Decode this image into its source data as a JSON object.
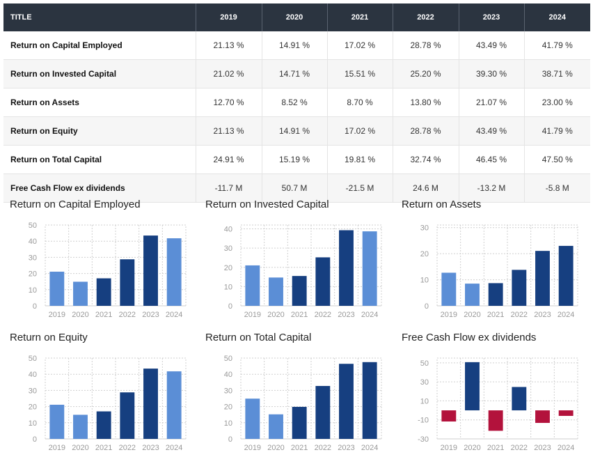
{
  "table": {
    "header": [
      "TITLE",
      "2019",
      "2020",
      "2021",
      "2022",
      "2023",
      "2024"
    ],
    "rows": [
      {
        "label": "Return on Capital Employed",
        "values": [
          "21.13 %",
          "14.91 %",
          "17.02 %",
          "28.78 %",
          "43.49 %",
          "41.79 %"
        ]
      },
      {
        "label": "Return on Invested Capital",
        "values": [
          "21.02 %",
          "14.71 %",
          "15.51 %",
          "25.20 %",
          "39.30 %",
          "38.71 %"
        ]
      },
      {
        "label": "Return on Assets",
        "values": [
          "12.70 %",
          "8.52 %",
          "8.70 %",
          "13.80 %",
          "21.07 %",
          "23.00 %"
        ]
      },
      {
        "label": "Return on Equity",
        "values": [
          "21.13 %",
          "14.91 %",
          "17.02 %",
          "28.78 %",
          "43.49 %",
          "41.79 %"
        ]
      },
      {
        "label": "Return on Total Capital",
        "values": [
          "24.91 %",
          "15.19 %",
          "19.81 %",
          "32.74 %",
          "46.45 %",
          "47.50 %"
        ]
      },
      {
        "label": "Free Cash Flow ex dividends",
        "values": [
          "-11.7 M",
          "50.7 M",
          "-21.5 M",
          "24.6 M",
          "-13.2 M",
          "-5.8 M"
        ]
      }
    ]
  },
  "colors": {
    "bar_light": "#5b8ed6",
    "bar_dark": "#163f80",
    "bar_negative": "#b3123c",
    "grid": "#cfcfcf",
    "tick": "#999999"
  },
  "chart_data": [
    {
      "type": "bar",
      "title": "Return on Capital Employed",
      "categories": [
        "2019",
        "2020",
        "2021",
        "2022",
        "2023",
        "2024"
      ],
      "values": [
        21.13,
        14.91,
        17.02,
        28.78,
        43.49,
        41.79
      ],
      "bar_colors": [
        "light",
        "light",
        "dark",
        "dark",
        "dark",
        "light"
      ],
      "yticks": [
        0,
        10,
        20,
        30,
        40,
        50
      ],
      "ylim": [
        0,
        50
      ],
      "grid": true
    },
    {
      "type": "bar",
      "title": "Return on Invested Capital",
      "categories": [
        "2019",
        "2020",
        "2021",
        "2022",
        "2023",
        "2024"
      ],
      "values": [
        21.02,
        14.71,
        15.51,
        25.2,
        39.3,
        38.71
      ],
      "bar_colors": [
        "light",
        "light",
        "dark",
        "dark",
        "dark",
        "light"
      ],
      "yticks": [
        0,
        10,
        20,
        30,
        40
      ],
      "ylim": [
        0,
        42
      ],
      "grid": true
    },
    {
      "type": "bar",
      "title": "Return on Assets",
      "categories": [
        "2019",
        "2020",
        "2021",
        "2022",
        "2023",
        "2024"
      ],
      "values": [
        12.7,
        8.52,
        8.7,
        13.8,
        21.07,
        23.0
      ],
      "bar_colors": [
        "light",
        "light",
        "dark",
        "dark",
        "dark",
        "dark"
      ],
      "yticks": [
        0,
        10,
        20,
        30
      ],
      "ylim": [
        0,
        31
      ],
      "grid": true
    },
    {
      "type": "bar",
      "title": "Return on Equity",
      "categories": [
        "2019",
        "2020",
        "2021",
        "2022",
        "2023",
        "2024"
      ],
      "values": [
        21.13,
        14.91,
        17.02,
        28.78,
        43.49,
        41.79
      ],
      "bar_colors": [
        "light",
        "light",
        "dark",
        "dark",
        "dark",
        "light"
      ],
      "yticks": [
        0,
        10,
        20,
        30,
        40,
        50
      ],
      "ylim": [
        0,
        50
      ],
      "grid": true
    },
    {
      "type": "bar",
      "title": "Return on Total Capital",
      "categories": [
        "2019",
        "2020",
        "2021",
        "2022",
        "2023",
        "2024"
      ],
      "values": [
        24.91,
        15.19,
        19.81,
        32.74,
        46.45,
        47.5
      ],
      "bar_colors": [
        "light",
        "light",
        "dark",
        "dark",
        "dark",
        "dark"
      ],
      "yticks": [
        0,
        10,
        20,
        30,
        40,
        50
      ],
      "ylim": [
        0,
        50
      ],
      "grid": true
    },
    {
      "type": "bar",
      "title": "Free Cash Flow ex dividends",
      "categories": [
        "2019",
        "2020",
        "2021",
        "2022",
        "2023",
        "2024"
      ],
      "values": [
        -11.7,
        50.7,
        -21.5,
        24.6,
        -13.2,
        -5.8
      ],
      "bar_colors": [
        "negative",
        "dark",
        "negative",
        "dark",
        "negative",
        "negative"
      ],
      "yticks": [
        -30,
        -10,
        10,
        30,
        50
      ],
      "ylim": [
        -30,
        55
      ],
      "grid": true
    }
  ]
}
